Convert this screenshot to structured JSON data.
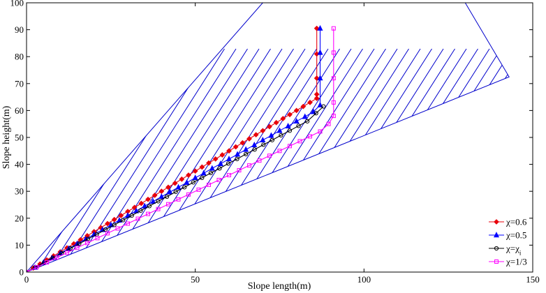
{
  "chart_data": {
    "type": "line",
    "xlabel": "Slope length(m)",
    "ylabel": "Slope height(m)",
    "xlim": [
      0,
      150
    ],
    "ylim": [
      0,
      100
    ],
    "xticks": [
      "0",
      "50",
      "100",
      "150"
    ],
    "yticks": [
      "0",
      "10",
      "20",
      "30",
      "40",
      "50",
      "60",
      "70",
      "80",
      "90",
      "100"
    ],
    "grid": false,
    "legend_position": "bottom-right",
    "hatched_region": {
      "boundary": [
        [
          0,
          0
        ],
        [
          70,
          100
        ],
        [
          130,
          100
        ],
        [
          143,
          72.5
        ],
        [
          0,
          0
        ]
      ],
      "hatch_color": "#0000cc"
    },
    "series": [
      {
        "name": "χ=0.6",
        "color": "#e8000b",
        "marker": "diamond",
        "x": [
          0,
          2,
          4,
          6,
          8,
          10,
          12,
          14,
          16,
          18,
          20,
          22,
          24,
          26,
          28,
          30,
          32,
          34,
          36,
          38,
          40,
          42,
          44,
          46,
          48,
          50,
          52,
          54,
          56,
          58,
          60,
          62,
          64,
          66,
          68,
          70,
          72,
          74,
          76,
          78,
          80,
          82,
          84,
          86,
          86,
          86,
          86,
          86
        ],
        "y": [
          0,
          1.5,
          3,
          4.5,
          6,
          7.5,
          9,
          10.5,
          12,
          13.5,
          15,
          16.5,
          18,
          19.5,
          21,
          22.5,
          24,
          25.5,
          27,
          28.5,
          30,
          31.5,
          33,
          34.5,
          36,
          37.5,
          39,
          40.5,
          42,
          43.5,
          45,
          46.5,
          48,
          49.5,
          51,
          52.5,
          54,
          55.5,
          57,
          58.5,
          60,
          61.5,
          63,
          64.5,
          66,
          72,
          81,
          90.5
        ]
      },
      {
        "name": "χ=0.5",
        "color": "#0000ff",
        "marker": "triangle",
        "x": [
          0,
          2.5,
          5,
          7.5,
          10,
          12.5,
          15,
          17.5,
          20,
          22.5,
          25,
          27.5,
          30,
          32.5,
          35,
          37.5,
          40,
          42.5,
          45,
          47.5,
          50,
          52.5,
          55,
          57.5,
          60,
          62.5,
          65,
          67.5,
          70,
          72.5,
          75,
          77.5,
          80,
          82.5,
          85,
          87,
          87,
          87,
          87
        ],
        "y": [
          0,
          1.7,
          3.5,
          5.2,
          7,
          8.7,
          10.5,
          12.2,
          14,
          15.7,
          17.5,
          19.2,
          21,
          22.7,
          24.5,
          26.2,
          28,
          29.7,
          31.5,
          33.2,
          35,
          36.7,
          38.5,
          40.2,
          42,
          43.7,
          45.5,
          47.2,
          49,
          50.7,
          52.5,
          54.2,
          56,
          57.7,
          59.5,
          62,
          72,
          81.5,
          90.5
        ]
      },
      {
        "name": "χ=χᵢ",
        "color": "#000000",
        "marker": "circle",
        "x": [
          0,
          2.6,
          5.2,
          7.8,
          10.4,
          13,
          15.6,
          18.2,
          20.8,
          23.4,
          26,
          28.6,
          31.2,
          33.8,
          36.4,
          39,
          41.6,
          44.2,
          46.8,
          49.4,
          52,
          54.6,
          57.2,
          59.8,
          62.4,
          65,
          67.6,
          70.2,
          72.8,
          75.4,
          78,
          80.6,
          83.2,
          85.8,
          88
        ],
        "y": [
          0,
          1.8,
          3.5,
          5.3,
          7,
          8.8,
          10.5,
          12.3,
          14,
          15.8,
          17.5,
          19.3,
          21,
          22.8,
          24.5,
          26.3,
          28,
          29.8,
          31.5,
          33.3,
          35,
          36.8,
          38.5,
          40.3,
          42,
          43.8,
          45.5,
          47.3,
          49,
          50.8,
          52.5,
          54.3,
          56,
          59,
          61.5
        ]
      },
      {
        "name": "χ=1/3",
        "color": "#ff00ff",
        "marker": "square",
        "x": [
          0,
          3,
          6,
          9,
          12,
          15,
          18,
          21,
          24,
          27,
          30,
          33,
          36,
          39,
          42,
          45,
          48,
          51,
          54,
          57,
          60,
          63,
          66,
          69,
          72,
          75,
          78,
          81,
          84,
          87,
          89.5,
          91,
          91,
          91,
          91,
          91
        ],
        "y": [
          0,
          1.8,
          3.6,
          5.4,
          7.2,
          9,
          10.8,
          12.6,
          14.4,
          16.2,
          18,
          19.8,
          21.6,
          23.4,
          25.2,
          27,
          28.8,
          30.6,
          32.4,
          34.2,
          36,
          37.8,
          39.6,
          41.4,
          43.2,
          45,
          46.8,
          48.6,
          50.4,
          52.2,
          55,
          58,
          63,
          72,
          81.5,
          90.5
        ]
      }
    ],
    "legend": [
      {
        "label": "χ=0.6",
        "color": "#e8000b",
        "marker": "diamond"
      },
      {
        "label": "χ=0.5",
        "color": "#0000ff",
        "marker": "triangle"
      },
      {
        "label": "χ=χ",
        "sub": "i",
        "color": "#000000",
        "marker": "circle"
      },
      {
        "label": "χ=1/3",
        "color": "#ff00ff",
        "marker": "square"
      }
    ]
  }
}
